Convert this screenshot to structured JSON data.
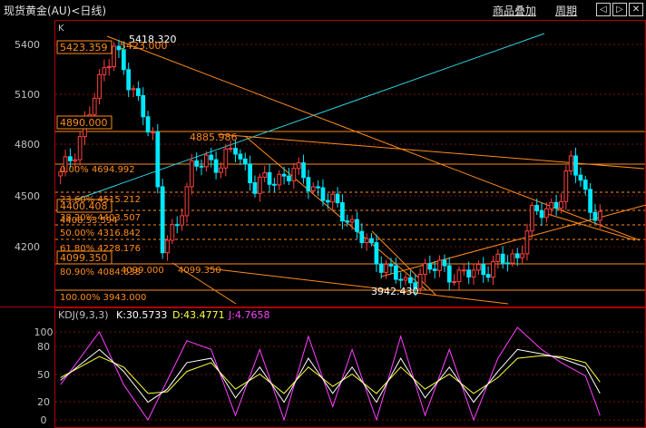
{
  "header": {
    "title": "现货黄金(AU)<日线)",
    "menu_overlay": "商品叠加",
    "menu_period": "周期",
    "nav_left": "◁",
    "nav_right": "▷",
    "nav_close": "✕"
  },
  "main_panel": {
    "label": "K",
    "y_ticks": [
      "5400",
      "5100",
      "4800",
      "4500",
      "4200"
    ],
    "annotations": {
      "high_label": "5418.320",
      "high_label2": "5423.000",
      "left_box_1": "5423.359",
      "left_box_2": "4890.000",
      "left_box_3": "4400.408",
      "left_box_4": "4099.350",
      "peak2_label": "4885.986",
      "low_label": "3942.430",
      "low_mid_1": "4099.000",
      "low_mid_2": "4099.350",
      "fib_0": "0.00% 4694.992",
      "fib_236": "23.60% 4515.212",
      "fib_382": "38.20% 4403.507",
      "fib_over": "4408.53.594",
      "fib_500": "50.00% 4316.842",
      "fib_618": "61.80% 4228.176",
      "fib_809": "80.90% 4084.638",
      "fib_100": "100.00% 3943.000"
    }
  },
  "kdj_panel": {
    "legend_name": "KDJ(9,3,3)",
    "legend_k": "K:30.5733",
    "legend_d": "D:43.4771",
    "legend_j": "J:4.7658",
    "y_ticks": [
      "100",
      "80",
      "50",
      "20",
      "0"
    ]
  },
  "colors": {
    "up": "#ff4040",
    "down": "#00e8ff",
    "fib": "#ff8c1a",
    "trend_cyan": "#2fd2e0",
    "k_line": "#ffffff",
    "d_line": "#ffff40",
    "j_line": "#ff40ff",
    "panel_border": "#b00000"
  },
  "chart_data": {
    "type": "candlestick",
    "y_range_main": [
      3900,
      5500
    ],
    "y_range_kdj": [
      0,
      110
    ],
    "grid": true,
    "legend": "top-left",
    "close_path": [
      [
        0,
        4620
      ],
      [
        3,
        4780
      ],
      [
        6,
        5000
      ],
      [
        9,
        5250
      ],
      [
        11,
        5418
      ],
      [
        14,
        5150
      ],
      [
        17,
        5020
      ],
      [
        19,
        4850
      ],
      [
        21,
        4180
      ],
      [
        24,
        4350
      ],
      [
        27,
        4650
      ],
      [
        30,
        4720
      ],
      [
        33,
        4690
      ],
      [
        36,
        4780
      ],
      [
        40,
        4560
      ],
      [
        44,
        4600
      ],
      [
        48,
        4650
      ],
      [
        52,
        4560
      ],
      [
        56,
        4450
      ],
      [
        59,
        4380
      ],
      [
        62,
        4250
      ],
      [
        65,
        4130
      ],
      [
        68,
        4060
      ],
      [
        71,
        3960
      ],
      [
        74,
        4050
      ],
      [
        78,
        4080
      ],
      [
        82,
        4020
      ],
      [
        86,
        4060
      ],
      [
        90,
        4100
      ],
      [
        94,
        4140
      ],
      [
        97,
        4380
      ],
      [
        100,
        4420
      ],
      [
        103,
        4500
      ],
      [
        105,
        4690
      ],
      [
        107,
        4620
      ],
      [
        109,
        4420
      ],
      [
        111,
        4380
      ]
    ],
    "kdj": {
      "K": [
        [
          0,
          45
        ],
        [
          8,
          80
        ],
        [
          13,
          55
        ],
        [
          18,
          20
        ],
        [
          22,
          35
        ],
        [
          26,
          65
        ],
        [
          31,
          70
        ],
        [
          36,
          25
        ],
        [
          41,
          60
        ],
        [
          46,
          20
        ],
        [
          51,
          70
        ],
        [
          56,
          30
        ],
        [
          60,
          60
        ],
        [
          65,
          20
        ],
        [
          70,
          70
        ],
        [
          75,
          25
        ],
        [
          80,
          60
        ],
        [
          85,
          20
        ],
        [
          90,
          55
        ],
        [
          94,
          80
        ],
        [
          99,
          75
        ],
        [
          103,
          70
        ],
        [
          108,
          60
        ],
        [
          111,
          30
        ]
      ],
      "D": [
        [
          0,
          48
        ],
        [
          8,
          72
        ],
        [
          13,
          60
        ],
        [
          18,
          30
        ],
        [
          22,
          32
        ],
        [
          26,
          55
        ],
        [
          31,
          65
        ],
        [
          36,
          35
        ],
        [
          41,
          52
        ],
        [
          46,
          30
        ],
        [
          51,
          60
        ],
        [
          56,
          38
        ],
        [
          60,
          52
        ],
        [
          65,
          30
        ],
        [
          70,
          60
        ],
        [
          75,
          35
        ],
        [
          80,
          52
        ],
        [
          85,
          30
        ],
        [
          90,
          48
        ],
        [
          94,
          70
        ],
        [
          99,
          73
        ],
        [
          103,
          72
        ],
        [
          108,
          65
        ],
        [
          111,
          43
        ]
      ],
      "J": [
        [
          0,
          40
        ],
        [
          8,
          100
        ],
        [
          13,
          40
        ],
        [
          18,
          0
        ],
        [
          22,
          45
        ],
        [
          26,
          90
        ],
        [
          31,
          80
        ],
        [
          36,
          5
        ],
        [
          41,
          80
        ],
        [
          46,
          0
        ],
        [
          51,
          95
        ],
        [
          56,
          15
        ],
        [
          60,
          80
        ],
        [
          65,
          0
        ],
        [
          70,
          95
        ],
        [
          75,
          5
        ],
        [
          80,
          80
        ],
        [
          85,
          0
        ],
        [
          90,
          70
        ],
        [
          94,
          105
        ],
        [
          99,
          80
        ],
        [
          103,
          65
        ],
        [
          108,
          50
        ],
        [
          111,
          5
        ]
      ]
    }
  }
}
